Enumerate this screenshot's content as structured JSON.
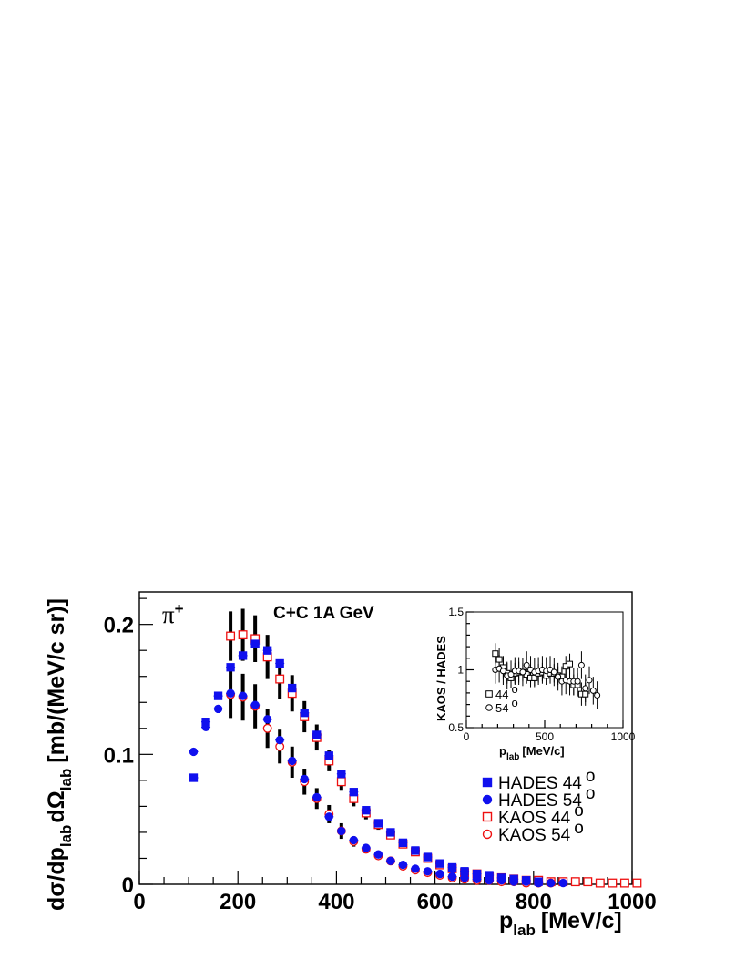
{
  "colors": {
    "hades": "#1010ee",
    "kaos": "#ee1010",
    "errorbar": "#000000",
    "inset_markers": "#000000"
  },
  "chart_data": [
    {
      "type": "scatter",
      "annotation_particle": "π",
      "annotation_particle_sup": "+",
      "annotation_system": "C+C 1A GeV",
      "xlabel": "p",
      "xlabel_sub": "lab",
      "xlabel_unit": "[MeV/c]",
      "ylabel": "dσ/dp",
      "ylabel_sub1": "lab",
      "ylabel_mid": "dΩ",
      "ylabel_sub2": "lab",
      "ylabel_unit": "[mb/(MeV/c sr)]",
      "xlim": [
        0,
        1000
      ],
      "ylim": [
        0,
        0.225
      ],
      "xticks": [
        0,
        200,
        400,
        600,
        800,
        1000
      ],
      "xtick_labels": [
        "0",
        "200",
        "400",
        "600",
        "800",
        "1000"
      ],
      "yticks": [
        0,
        0.1,
        0.2
      ],
      "ytick_labels": [
        "0",
        "0.1",
        "0.2"
      ],
      "legend_position": "right",
      "series": [
        {
          "name": "HADES 44",
          "marker": "square-filled",
          "color_key": "hades",
          "x": [
            110,
            135,
            160,
            185,
            210,
            235,
            260,
            285,
            310,
            335,
            360,
            385,
            410,
            435,
            460,
            485,
            510,
            535,
            560,
            585,
            610,
            635,
            660,
            685,
            710,
            735,
            760,
            785,
            810
          ],
          "y": [
            0.082,
            0.125,
            0.145,
            0.167,
            0.176,
            0.185,
            0.18,
            0.17,
            0.151,
            0.132,
            0.115,
            0.099,
            0.085,
            0.071,
            0.057,
            0.047,
            0.04,
            0.032,
            0.026,
            0.021,
            0.016,
            0.013,
            0.01,
            0.008,
            0.007,
            0.005,
            0.004,
            0.003,
            0.002
          ],
          "yerr": [
            0.002,
            0.002,
            0.002,
            0.002,
            0.002,
            0.002,
            0.002,
            0.002,
            0.002,
            0.002,
            0.002,
            0.002,
            0.002,
            0.002,
            0.002,
            0.002,
            0.001,
            0.001,
            0.001,
            0.001,
            0.001,
            0.001,
            0.001,
            0.001,
            0.001,
            0.001,
            0.001,
            0.001,
            0.001
          ]
        },
        {
          "name": "HADES 54",
          "marker": "circle-filled",
          "color_key": "hades",
          "x": [
            110,
            135,
            160,
            185,
            210,
            235,
            260,
            285,
            310,
            335,
            360,
            385,
            410,
            435,
            460,
            485,
            510,
            535,
            560,
            585,
            610,
            635,
            660,
            685,
            710,
            735,
            760,
            785,
            810,
            835,
            860
          ],
          "y": [
            0.102,
            0.121,
            0.135,
            0.147,
            0.145,
            0.138,
            0.127,
            0.111,
            0.095,
            0.081,
            0.067,
            0.052,
            0.041,
            0.034,
            0.028,
            0.023,
            0.018,
            0.015,
            0.012,
            0.01,
            0.008,
            0.006,
            0.005,
            0.004,
            0.003,
            0.003,
            0.002,
            0.002,
            0.001,
            0.001,
            0.001
          ],
          "yerr": [
            0.002,
            0.002,
            0.002,
            0.002,
            0.002,
            0.002,
            0.002,
            0.002,
            0.002,
            0.002,
            0.002,
            0.002,
            0.002,
            0.001,
            0.001,
            0.001,
            0.001,
            0.001,
            0.001,
            0.001,
            0.001,
            0.001,
            0.001,
            0.001,
            0.001,
            0.001,
            0.001,
            0.001,
            0.001,
            0.001,
            0.001
          ]
        },
        {
          "name": "KAOS 44",
          "marker": "square-open",
          "color_key": "kaos",
          "x": [
            185,
            210,
            235,
            260,
            285,
            310,
            335,
            360,
            385,
            410,
            435,
            460,
            485,
            510,
            535,
            560,
            585,
            610,
            635,
            660,
            685,
            710,
            735,
            760,
            785,
            810,
            835,
            860,
            885,
            910,
            935,
            960,
            985,
            1010
          ],
          "y": [
            0.191,
            0.192,
            0.189,
            0.175,
            0.158,
            0.147,
            0.129,
            0.113,
            0.095,
            0.079,
            0.066,
            0.055,
            0.046,
            0.038,
            0.031,
            0.025,
            0.02,
            0.015,
            0.012,
            0.009,
            0.008,
            0.006,
            0.005,
            0.004,
            0.003,
            0.003,
            0.002,
            0.002,
            0.002,
            0.002,
            0.001,
            0.001,
            0.001,
            0.001
          ],
          "yerr": [
            0.019,
            0.02,
            0.018,
            0.017,
            0.015,
            0.014,
            0.012,
            0.01,
            0.008,
            0.007,
            0.006,
            0.005,
            0.004,
            0.003,
            0.003,
            0.002,
            0.002,
            0.002,
            0.001,
            0.001,
            0.001,
            0.001,
            0.001,
            0.001,
            0.001,
            0.001,
            0.001,
            0.001,
            0.001,
            0.001,
            0.001,
            0.001,
            0.001,
            0.001
          ]
        },
        {
          "name": "KAOS 54",
          "marker": "circle-open",
          "color_key": "kaos",
          "x": [
            185,
            210,
            235,
            260,
            285,
            310,
            335,
            360,
            385,
            410,
            435,
            460,
            485,
            510,
            535,
            560,
            585,
            610,
            635,
            660,
            685,
            710,
            735,
            760,
            785,
            810,
            835
          ],
          "y": [
            0.146,
            0.144,
            0.137,
            0.12,
            0.106,
            0.094,
            0.079,
            0.066,
            0.054,
            0.041,
            0.033,
            0.027,
            0.022,
            0.018,
            0.014,
            0.011,
            0.009,
            0.007,
            0.005,
            0.004,
            0.003,
            0.003,
            0.002,
            0.002,
            0.001,
            0.001,
            0.001
          ],
          "yerr": [
            0.018,
            0.018,
            0.017,
            0.015,
            0.013,
            0.012,
            0.01,
            0.008,
            0.007,
            0.006,
            0.004,
            0.003,
            0.003,
            0.002,
            0.002,
            0.001,
            0.001,
            0.001,
            0.001,
            0.001,
            0.001,
            0.001,
            0.001,
            0.001,
            0.001,
            0.001,
            0.001
          ]
        }
      ],
      "legend": [
        {
          "label": "HADES 44",
          "deg": "o",
          "marker": "square-filled",
          "color_key": "hades"
        },
        {
          "label": "HADES 54",
          "deg": "o",
          "marker": "circle-filled",
          "color_key": "hades"
        },
        {
          "label": "KAOS 44",
          "deg": "o",
          "marker": "square-open",
          "color_key": "kaos"
        },
        {
          "label": "KAOS 54",
          "deg": "o",
          "marker": "circle-open",
          "color_key": "kaos"
        }
      ]
    },
    {
      "type": "scatter",
      "name": "inset",
      "xlabel": "p",
      "xlabel_sub": "lab",
      "xlabel_unit": "[MeV/c]",
      "ylabel": "KAOS / HADES",
      "xlim": [
        0,
        1000
      ],
      "ylim": [
        0.5,
        1.5
      ],
      "xticks": [
        0,
        500,
        1000
      ],
      "xtick_labels": [
        "0",
        "500",
        "1000"
      ],
      "yticks": [
        0.5,
        1,
        1.5
      ],
      "ytick_labels": [
        "0.5",
        "1",
        "1.5"
      ],
      "legend_position": "bottom-left",
      "series": [
        {
          "name": "44",
          "marker": "square-open",
          "x": [
            185,
            210,
            235,
            260,
            285,
            310,
            335,
            360,
            385,
            410,
            435,
            460,
            485,
            510,
            535,
            560,
            585,
            610,
            635,
            660,
            685,
            710,
            735,
            760
          ],
          "y": [
            1.14,
            1.09,
            1.02,
            0.97,
            0.93,
            0.97,
            0.98,
            0.98,
            0.96,
            0.93,
            0.93,
            0.97,
            0.98,
            0.95,
            0.97,
            0.97,
            0.95,
            0.94,
            1.03,
            1.05,
            0.87,
            0.87,
            0.79,
            0.79
          ],
          "yerr": [
            0.09,
            0.1,
            0.1,
            0.09,
            0.09,
            0.09,
            0.09,
            0.08,
            0.08,
            0.08,
            0.08,
            0.08,
            0.08,
            0.08,
            0.08,
            0.08,
            0.08,
            0.09,
            0.09,
            0.09,
            0.09,
            0.1,
            0.1,
            0.1
          ]
        },
        {
          "name": "54",
          "marker": "circle-open",
          "x": [
            185,
            210,
            235,
            260,
            285,
            310,
            335,
            360,
            385,
            410,
            435,
            460,
            485,
            510,
            535,
            560,
            585,
            610,
            635,
            660,
            685,
            710,
            735,
            760,
            785,
            810,
            835
          ],
          "y": [
            1.0,
            1.01,
            0.99,
            0.95,
            0.96,
            0.99,
            0.99,
            0.98,
            1.04,
            1.0,
            0.98,
            0.99,
            1.0,
            0.99,
            1.0,
            0.98,
            0.94,
            0.9,
            0.91,
            0.9,
            0.9,
            0.9,
            1.04,
            0.84,
            0.91,
            0.82,
            0.78
          ],
          "yerr": [
            0.12,
            0.12,
            0.12,
            0.12,
            0.12,
            0.12,
            0.12,
            0.12,
            0.12,
            0.12,
            0.12,
            0.12,
            0.12,
            0.12,
            0.12,
            0.12,
            0.12,
            0.12,
            0.12,
            0.12,
            0.12,
            0.12,
            0.12,
            0.12,
            0.12,
            0.12,
            0.12
          ]
        }
      ],
      "legend": [
        {
          "label": "44",
          "deg": "o",
          "marker": "square-open"
        },
        {
          "label": "54",
          "deg": "o",
          "marker": "circle-open"
        }
      ]
    }
  ]
}
